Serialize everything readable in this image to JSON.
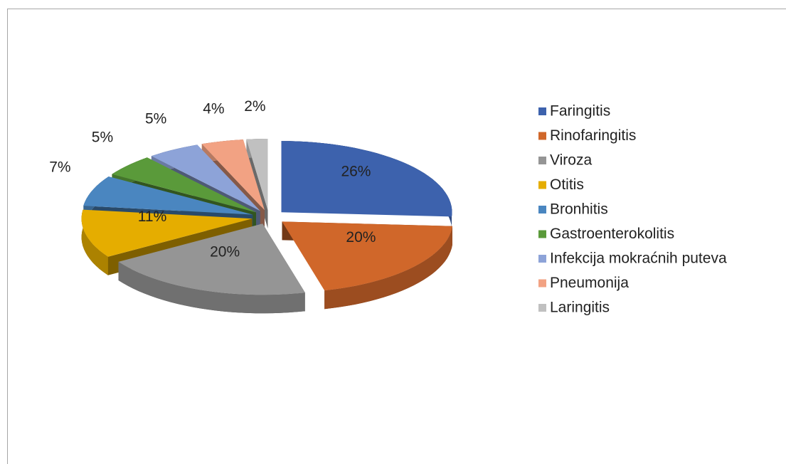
{
  "chart_data": {
    "type": "pie3d",
    "categories": [
      "Faringitis",
      "Rinofaringitis",
      "Viroza",
      "Otitis",
      "Bronhitis",
      "Gastroenterokolitis",
      "Infekcija mokraćnih puteva",
      "Pneumonija",
      "Laringitis"
    ],
    "values": [
      26,
      20,
      20,
      11,
      7,
      5,
      5,
      4,
      2
    ],
    "value_labels": [
      "26%",
      "20%",
      "20%",
      "11%",
      "7%",
      "5%",
      "5%",
      "4%",
      "2%"
    ],
    "colors": [
      "#3d62ad",
      "#d0672a",
      "#959595",
      "#e5ad00",
      "#4a86c0",
      "#5a9a3a",
      "#8da3d8",
      "#f2a283",
      "#c0c0c0"
    ],
    "legend": "right"
  }
}
